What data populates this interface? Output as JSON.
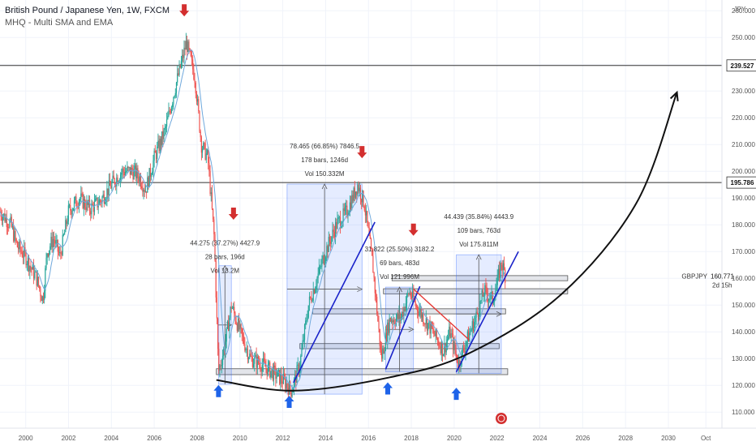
{
  "header": {
    "title": "British Pound / Japanese Yen, 1W, FXCM",
    "indicator": "MHQ - Multi SMA and EMA"
  },
  "axis": {
    "currency": "JPY",
    "y_ticks": [
      "260.000",
      "250.000",
      "240.000",
      "230.000",
      "220.000",
      "210.000",
      "200.000",
      "190.000",
      "180.000",
      "170.000",
      "160.000",
      "150.000",
      "140.000",
      "130.000",
      "120.000",
      "110.000"
    ],
    "y_tick_values": [
      260,
      250,
      240,
      230,
      220,
      210,
      200,
      190,
      180,
      170,
      160,
      150,
      140,
      130,
      120,
      110
    ],
    "x_ticks": [
      "2000",
      "2002",
      "2004",
      "2006",
      "2008",
      "2010",
      "2012",
      "2014",
      "2016",
      "2018",
      "2020",
      "2022",
      "2024",
      "2026",
      "2028",
      "2030",
      "Oct"
    ],
    "x_tick_values": [
      2000,
      2002,
      2004,
      2006,
      2008,
      2010,
      2012,
      2014,
      2016,
      2018,
      2020,
      2022,
      2024,
      2026,
      2028,
      2030,
      2031.75
    ]
  },
  "price_lines": [
    {
      "label": "239.527",
      "value": 239.527
    },
    {
      "label": "195.786",
      "value": 195.786
    }
  ],
  "current": {
    "symbol": "GBPJPY",
    "price_label": "160.771",
    "price": 160.771,
    "countdown": "2d 15h"
  },
  "measurements": [
    {
      "line1": "44.275 (37.27%) 4427.9",
      "line2": "28 bars, 196d",
      "line3": "Vol 13.2M"
    },
    {
      "line1": "78.465 (66.85%) 7846.5",
      "line2": "178 bars, 1246d",
      "line3": "Vol 150.332M"
    },
    {
      "line1": "31.822 (25.50%) 3182.2",
      "line2": "69 bars, 483d",
      "line3": "Vol 121.996M"
    },
    {
      "line1": "44.439 (35.84%) 4443.9",
      "line2": "109 bars, 763d",
      "line3": "Vol 175.811M"
    }
  ],
  "colors": {
    "bull": "#26a69a",
    "bear": "#ef5350",
    "ma": "#6fa8dc",
    "box": "#2962ff",
    "arrow_down": "#d32f2f",
    "arrow_up": "#1e63e9",
    "trend": "#1a23c9",
    "resist": "#e53935"
  },
  "chart_data": {
    "type": "line",
    "title": "British Pound / Japanese Yen, 1W, FXCM",
    "xlabel": "",
    "ylabel": "JPY",
    "xlim": [
      1998.8,
      2032.5
    ],
    "ylim": [
      104.0,
      264.0
    ],
    "series": [
      {
        "name": "GBPJPY",
        "points": [
          [
            1998.8,
            185
          ],
          [
            1999.3,
            180
          ],
          [
            1999.6,
            172
          ],
          [
            2000.0,
            168
          ],
          [
            2000.5,
            160
          ],
          [
            2000.8,
            152
          ],
          [
            2001.0,
            170
          ],
          [
            2001.3,
            175
          ],
          [
            2001.6,
            168
          ],
          [
            2002.0,
            185
          ],
          [
            2002.5,
            190
          ],
          [
            2003.0,
            186
          ],
          [
            2003.5,
            189
          ],
          [
            2004.0,
            195
          ],
          [
            2004.5,
            200
          ],
          [
            2005.0,
            200
          ],
          [
            2005.3,
            198
          ],
          [
            2005.6,
            193
          ],
          [
            2006.0,
            205
          ],
          [
            2006.5,
            215
          ],
          [
            2007.0,
            232
          ],
          [
            2007.5,
            248
          ],
          [
            2007.9,
            235
          ],
          [
            2008.2,
            210
          ],
          [
            2008.5,
            205
          ],
          [
            2008.8,
            175
          ],
          [
            2009.0,
            125
          ],
          [
            2009.3,
            135
          ],
          [
            2009.6,
            150
          ],
          [
            2010.0,
            140
          ],
          [
            2010.5,
            130
          ],
          [
            2011.0,
            128
          ],
          [
            2011.5,
            125
          ],
          [
            2012.0,
            122
          ],
          [
            2012.4,
            118
          ],
          [
            2012.8,
            128
          ],
          [
            2013.2,
            150
          ],
          [
            2013.6,
            160
          ],
          [
            2014.0,
            170
          ],
          [
            2014.5,
            180
          ],
          [
            2015.0,
            185
          ],
          [
            2015.5,
            195
          ],
          [
            2015.8,
            188
          ],
          [
            2016.2,
            165
          ],
          [
            2016.6,
            130
          ],
          [
            2017.0,
            145
          ],
          [
            2017.5,
            145
          ],
          [
            2017.9,
            155
          ],
          [
            2018.2,
            150
          ],
          [
            2018.6,
            145
          ],
          [
            2019.0,
            140
          ],
          [
            2019.5,
            133
          ],
          [
            2019.8,
            140
          ],
          [
            2020.2,
            128
          ],
          [
            2020.6,
            137
          ],
          [
            2021.0,
            145
          ],
          [
            2021.4,
            155
          ],
          [
            2021.8,
            152
          ],
          [
            2022.0,
            158
          ],
          [
            2022.2,
            166
          ],
          [
            2022.4,
            160.771
          ]
        ]
      }
    ],
    "annotations": {
      "support_zones": [
        {
          "x0": 2008.9,
          "x1": 2022.5,
          "y0": 124.0,
          "y1": 126.2
        },
        {
          "x0": 2012.8,
          "x1": 2022.1,
          "y0": 133.7,
          "y1": 135.6
        },
        {
          "x0": 2013.4,
          "x1": 2022.4,
          "y0": 146.7,
          "y1": 148.6
        },
        {
          "x0": 2016.7,
          "x1": 2025.3,
          "y0": 154.2,
          "y1": 156.1
        },
        {
          "x0": 2017.1,
          "x1": 2025.3,
          "y0": 159.1,
          "y1": 161.0
        }
      ],
      "measure_boxes": [
        {
          "x0": 2009.0,
          "x1": 2009.6,
          "y0": 120.4,
          "y1": 164.7
        },
        {
          "x0": 2012.2,
          "x1": 2015.7,
          "y0": 116.7,
          "y1": 195.2
        },
        {
          "x0": 2016.8,
          "x1": 2018.1,
          "y0": 125.1,
          "y1": 156.7
        },
        {
          "x0": 2020.1,
          "x1": 2022.2,
          "y0": 124.5,
          "y1": 168.8
        }
      ],
      "trend_lines": [
        {
          "x0": 2012.5,
          "y0": 121,
          "x1": 2016.3,
          "y1": 181
        },
        {
          "x0": 2016.8,
          "y0": 126,
          "x1": 2018.4,
          "y1": 157
        },
        {
          "x0": 2020.1,
          "y0": 125,
          "x1": 2023.0,
          "y1": 170
        }
      ],
      "resistance_line": {
        "x0": 2018.1,
        "y0": 156,
        "x1": 2020.7,
        "y1": 137
      },
      "curve": [
        [
          2008.9,
          122
        ],
        [
          2012.5,
          118
        ],
        [
          2017.0,
          123
        ],
        [
          2020.7,
          132
        ],
        [
          2025.0,
          154
        ],
        [
          2028.5,
          188
        ],
        [
          2030.4,
          229.5
        ]
      ],
      "down_arrows": [
        [
          2007.4,
          260
        ],
        [
          2015.7,
          207
        ],
        [
          2009.7,
          184
        ],
        [
          2018.1,
          178
        ]
      ],
      "up_arrows": [
        [
          2009.0,
          118
        ],
        [
          2012.3,
          114
        ],
        [
          2016.9,
          119
        ],
        [
          2020.1,
          117
        ]
      ]
    }
  }
}
